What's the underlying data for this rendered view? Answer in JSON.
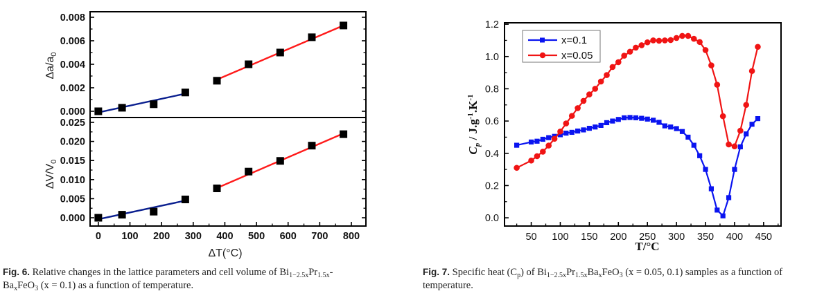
{
  "chart_data": [
    {
      "id": "fig6",
      "type": "scatter",
      "panels": [
        {
          "id": "a",
          "ylabel": "Δa/a",
          "ylabel_sub": "0",
          "ylim": [
            -0.00053,
            0.00847
          ],
          "yticks": [
            0.0,
            0.002,
            0.004,
            0.006,
            0.008
          ],
          "ytick_labels": [
            "0.000",
            "0.002",
            "0.004",
            "0.006",
            "0.008"
          ],
          "points": {
            "x": [
              0,
              75,
              175,
              275,
              375,
              475,
              575,
              675,
              775
            ],
            "y": [
              0.0,
              0.0003,
              0.0006,
              0.0016,
              0.0026,
              0.004,
              0.005,
              0.0063,
              0.0073
            ]
          },
          "fits": [
            {
              "name": "low-T fit",
              "color": "#0a1f8f",
              "x": [
                0,
                275
              ],
              "y": [
                -0.0001,
                0.0015
              ]
            },
            {
              "name": "high-T fit",
              "color": "#ff1a1a",
              "x": [
                375,
                775
              ],
              "y": [
                0.0027,
                0.0073
              ]
            }
          ]
        },
        {
          "id": "V",
          "ylabel": "ΔV/V",
          "ylabel_sub": "0",
          "ylim": [
            -0.00217,
            0.02627
          ],
          "yticks": [
            0.0,
            0.005,
            0.01,
            0.015,
            0.02,
            0.025
          ],
          "ytick_labels": [
            "0.000",
            "0.005",
            "0.010",
            "0.015",
            "0.020",
            "0.025"
          ],
          "points": {
            "x": [
              0,
              75,
              175,
              275,
              375,
              475,
              575,
              675,
              775
            ],
            "y": [
              0.0,
              0.0008,
              0.0016,
              0.0048,
              0.0077,
              0.0121,
              0.0149,
              0.0189,
              0.0219
            ]
          },
          "fits": [
            {
              "name": "low-T fit",
              "color": "#0a1f8f",
              "x": [
                0,
                275
              ],
              "y": [
                -0.0004,
                0.0045
              ]
            },
            {
              "name": "high-T fit",
              "color": "#ff1a1a",
              "x": [
                375,
                775
              ],
              "y": [
                0.0078,
                0.0221
              ]
            }
          ]
        }
      ],
      "xlabel": "ΔT(°C)",
      "xlim": [
        -26,
        846
      ],
      "xticks": [
        0,
        100,
        200,
        300,
        400,
        500,
        600,
        700,
        800
      ],
      "xtick_labels": [
        "0",
        "100",
        "200",
        "300",
        "400",
        "500",
        "600",
        "700",
        "800"
      ],
      "marker": "square",
      "marker_color": "#000000",
      "grid": false,
      "legend": null
    },
    {
      "id": "fig7",
      "type": "line",
      "title": "",
      "xlabel": "T/°C",
      "ylabel": "C_p / J.g^-1.K^-1",
      "xlim": [
        4,
        480
      ],
      "ylim": [
        -0.051,
        1.209
      ],
      "xticks": [
        50,
        100,
        150,
        200,
        250,
        300,
        350,
        400,
        450
      ],
      "xtick_labels": [
        "50",
        "100",
        "150",
        "200",
        "250",
        "300",
        "350",
        "400",
        "450"
      ],
      "yticks": [
        0.0,
        0.2,
        0.4,
        0.6,
        0.8,
        1.0,
        1.2
      ],
      "ytick_labels": [
        "0.0",
        "0.2",
        "0.4",
        "0.6",
        "0.8",
        "1.0",
        "1.2"
      ],
      "grid": false,
      "legend_position": "top-left",
      "series": [
        {
          "name": "x=0.1",
          "color": "#0a14f0",
          "marker": "square",
          "x": [
            25,
            50,
            60,
            70,
            80,
            90,
            100,
            110,
            120,
            130,
            140,
            150,
            160,
            170,
            180,
            190,
            200,
            210,
            220,
            230,
            240,
            250,
            260,
            270,
            280,
            290,
            300,
            310,
            320,
            330,
            340,
            350,
            360,
            370,
            380,
            390,
            400,
            410,
            420,
            430,
            440
          ],
          "y": [
            0.45,
            0.47,
            0.475,
            0.487,
            0.497,
            0.505,
            0.515,
            0.525,
            0.53,
            0.538,
            0.545,
            0.555,
            0.563,
            0.573,
            0.59,
            0.6,
            0.61,
            0.62,
            0.622,
            0.62,
            0.617,
            0.612,
            0.605,
            0.592,
            0.57,
            0.563,
            0.553,
            0.535,
            0.5,
            0.45,
            0.385,
            0.3,
            0.18,
            0.048,
            0.012,
            0.125,
            0.3,
            0.44,
            0.52,
            0.58,
            0.615
          ]
        },
        {
          "name": "x=0.05",
          "color": "#f01414",
          "marker": "circle",
          "x": [
            25,
            50,
            60,
            70,
            80,
            90,
            100,
            110,
            120,
            130,
            140,
            150,
            160,
            170,
            180,
            190,
            200,
            210,
            220,
            230,
            240,
            250,
            260,
            270,
            280,
            290,
            300,
            310,
            320,
            330,
            340,
            350,
            360,
            370,
            380,
            390,
            400,
            410,
            420,
            430,
            440
          ],
          "y": [
            0.31,
            0.355,
            0.382,
            0.41,
            0.448,
            0.49,
            0.535,
            0.585,
            0.632,
            0.68,
            0.725,
            0.765,
            0.8,
            0.845,
            0.885,
            0.935,
            0.965,
            1.005,
            1.03,
            1.055,
            1.07,
            1.088,
            1.1,
            1.098,
            1.1,
            1.102,
            1.115,
            1.128,
            1.128,
            1.11,
            1.09,
            1.04,
            0.945,
            0.825,
            0.63,
            0.455,
            0.443,
            0.54,
            0.7,
            0.91,
            1.06
          ]
        }
      ]
    }
  ],
  "captions": {
    "fig6": {
      "label": "Fig. 6.",
      "text_1": " Relative changes in the lattice parameters and cell volume of Bi",
      "sub_1": "1−2.5x",
      "text_2": "Pr",
      "sub_2": "1.5x",
      "text_3": "-",
      "text_4": "Ba",
      "sub_3": "x",
      "text_5": "FeO",
      "sub_4": "3",
      "text_6": " (x = 0.1) as a function of temperature."
    },
    "fig7": {
      "label": "Fig. 7.",
      "text_1": " Specific heat (C",
      "sub_1": "p",
      "text_2": ") of Bi",
      "sub_2": "1−2.5x",
      "text_3": "Pr",
      "sub_3": "1.5x",
      "text_4": "Ba",
      "sub_4": "x",
      "text_5": "FeO",
      "sub_5": "3",
      "text_6": " (x = 0.05, 0.1) samples as a function of temperature."
    }
  }
}
